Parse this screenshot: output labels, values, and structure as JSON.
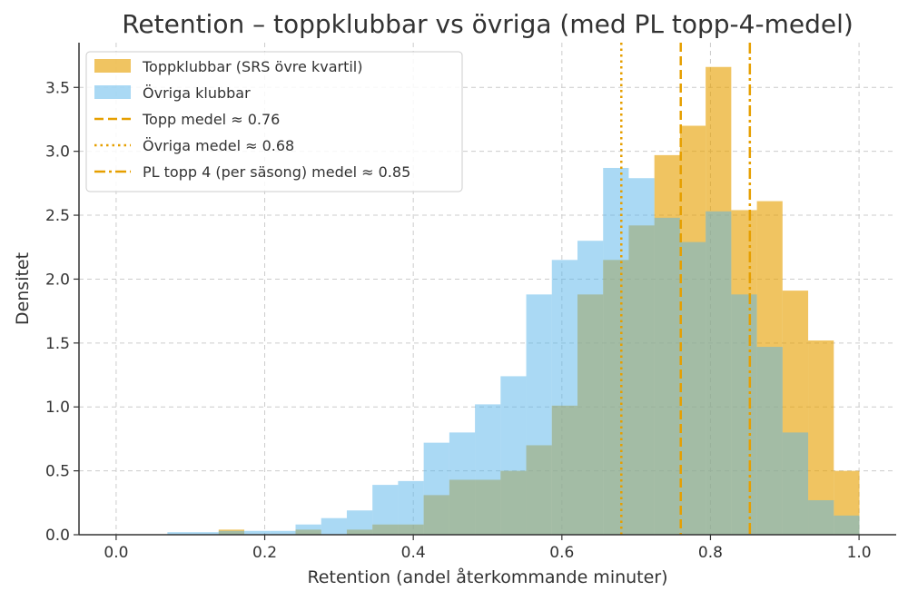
{
  "chart_data": {
    "type": "bar",
    "title": "Retention – toppklubbar vs övriga (med PL topp-4-medel)",
    "xlabel": "Retention (andel återkommande minuter)",
    "ylabel": "Densitet",
    "xlim": [
      -0.05,
      1.05
    ],
    "ylim": [
      0,
      3.85
    ],
    "xticks": [
      "0.0",
      "0.2",
      "0.4",
      "0.6",
      "0.8",
      "1.0"
    ],
    "yticks": [
      "0.0",
      "0.5",
      "1.0",
      "1.5",
      "2.0",
      "2.5",
      "3.0",
      "3.5"
    ],
    "grid": true,
    "legend_position": "top-left",
    "bin_start": 0.069,
    "bin_width": 0.0345,
    "series": [
      {
        "name": "Toppklubbar (SRS övre kvartil)",
        "color": "#E69F00",
        "values": [
          0,
          0,
          0.04,
          0,
          0,
          0.04,
          0,
          0.04,
          0.08,
          0.08,
          0.31,
          0.43,
          0.43,
          0.5,
          0.7,
          1.01,
          1.88,
          2.15,
          2.42,
          2.97,
          3.2,
          3.66,
          2.54,
          2.61,
          1.91,
          1.52,
          0.5
        ]
      },
      {
        "name": "Övriga klubbar",
        "color": "#56B4E9",
        "values": [
          0.02,
          0.02,
          0.03,
          0.03,
          0.03,
          0.08,
          0.13,
          0.19,
          0.39,
          0.42,
          0.72,
          0.8,
          1.02,
          1.24,
          1.88,
          2.15,
          2.3,
          2.87,
          2.79,
          2.48,
          2.29,
          2.53,
          1.88,
          1.47,
          0.8,
          0.27,
          0.15
        ]
      }
    ],
    "vlines": [
      {
        "name": "Topp medel ≈ 0.76",
        "x": 0.76,
        "style": "dashed",
        "color": "#E69F00"
      },
      {
        "name": "Övriga medel ≈ 0.68",
        "x": 0.68,
        "style": "dotted",
        "color": "#E69F00"
      },
      {
        "name": "PL topp 4 (per säsong) medel ≈ 0.85",
        "x": 0.853,
        "style": "dashdot",
        "color": "#E69F00"
      }
    ]
  }
}
